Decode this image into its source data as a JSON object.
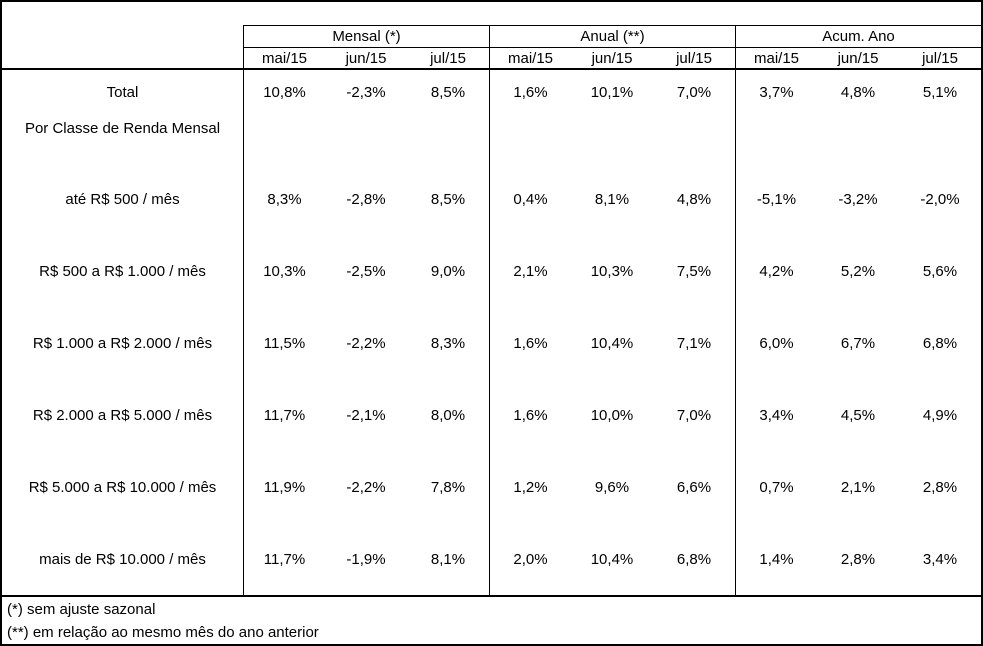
{
  "table": {
    "column_groups": [
      {
        "title": "Mensal (*)"
      },
      {
        "title": "Anual (**)"
      },
      {
        "title": "Acum. Ano"
      }
    ],
    "months": [
      "mai/15",
      "jun/15",
      "jul/15"
    ],
    "rows": [
      {
        "label": "Total",
        "values": [
          "10,8%",
          "-2,3%",
          "8,5%",
          "1,6%",
          "10,1%",
          "7,0%",
          "3,7%",
          "4,8%",
          "5,1%"
        ]
      },
      {
        "label": "Por Classe de Renda Mensal"
      },
      {
        "label": "até R$ 500 / mês",
        "values": [
          "8,3%",
          "-2,8%",
          "8,5%",
          "0,4%",
          "8,1%",
          "4,8%",
          "-5,1%",
          "-3,2%",
          "-2,0%"
        ]
      },
      {
        "label": "R$ 500 a R$ 1.000 / mês",
        "values": [
          "10,3%",
          "-2,5%",
          "9,0%",
          "2,1%",
          "10,3%",
          "7,5%",
          "4,2%",
          "5,2%",
          "5,6%"
        ]
      },
      {
        "label": "R$ 1.000 a R$ 2.000 / mês",
        "values": [
          "11,5%",
          "-2,2%",
          "8,3%",
          "1,6%",
          "10,4%",
          "7,1%",
          "6,0%",
          "6,7%",
          "6,8%"
        ]
      },
      {
        "label": "R$ 2.000 a R$ 5.000 / mês",
        "values": [
          "11,7%",
          "-2,1%",
          "8,0%",
          "1,6%",
          "10,0%",
          "7,0%",
          "3,4%",
          "4,5%",
          "4,9%"
        ]
      },
      {
        "label": "R$ 5.000 a R$ 10.000 / mês",
        "values": [
          "11,9%",
          "-2,2%",
          "7,8%",
          "1,2%",
          "9,6%",
          "6,6%",
          "0,7%",
          "2,1%",
          "2,8%"
        ]
      },
      {
        "label": "mais de R$ 10.000 / mês",
        "values": [
          "11,7%",
          "-1,9%",
          "8,1%",
          "2,0%",
          "10,4%",
          "6,8%",
          "1,4%",
          "2,8%",
          "3,4%"
        ]
      }
    ],
    "footnotes": [
      "(*) sem ajuste sazonal",
      "(**) em relação ao mesmo mês do ano anterior"
    ]
  },
  "colors": {
    "border": "#000000",
    "background": "#ffffff",
    "text": "#000000"
  },
  "chart_data": {
    "type": "table",
    "title": "",
    "column_groups": [
      "Mensal (*)",
      "Anual (**)",
      "Acum. Ano"
    ],
    "columns_per_group": [
      "mai/15",
      "jun/15",
      "jul/15"
    ],
    "section_label": "Por Classe de Renda Mensal",
    "unit": "%",
    "decimal_separator": ",",
    "rows": [
      {
        "label": "Total",
        "mensal": [
          10.8,
          -2.3,
          8.5
        ],
        "anual": [
          1.6,
          10.1,
          7.0
        ],
        "acum_ano": [
          3.7,
          4.8,
          5.1
        ]
      },
      {
        "label": "até R$ 500 / mês",
        "mensal": [
          8.3,
          -2.8,
          8.5
        ],
        "anual": [
          0.4,
          8.1,
          4.8
        ],
        "acum_ano": [
          -5.1,
          -3.2,
          -2.0
        ]
      },
      {
        "label": "R$ 500 a R$ 1.000 / mês",
        "mensal": [
          10.3,
          -2.5,
          9.0
        ],
        "anual": [
          2.1,
          10.3,
          7.5
        ],
        "acum_ano": [
          4.2,
          5.2,
          5.6
        ]
      },
      {
        "label": "R$ 1.000 a R$ 2.000 / mês",
        "mensal": [
          11.5,
          -2.2,
          8.3
        ],
        "anual": [
          1.6,
          10.4,
          7.1
        ],
        "acum_ano": [
          6.0,
          6.7,
          6.8
        ]
      },
      {
        "label": "R$ 2.000 a R$ 5.000 / mês",
        "mensal": [
          11.7,
          -2.1,
          8.0
        ],
        "anual": [
          1.6,
          10.0,
          7.0
        ],
        "acum_ano": [
          3.4,
          4.5,
          4.9
        ]
      },
      {
        "label": "R$ 5.000 a R$ 10.000 / mês",
        "mensal": [
          11.9,
          -2.2,
          7.8
        ],
        "anual": [
          1.2,
          9.6,
          6.6
        ],
        "acum_ano": [
          0.7,
          2.1,
          2.8
        ]
      },
      {
        "label": "mais de R$ 10.000 / mês",
        "mensal": [
          11.7,
          -1.9,
          8.1
        ],
        "anual": [
          2.0,
          10.4,
          6.8
        ],
        "acum_ano": [
          1.4,
          2.8,
          3.4
        ]
      }
    ],
    "footnotes": [
      "(*) sem ajuste sazonal",
      "(**) em relação ao mesmo mês do ano anterior"
    ]
  }
}
